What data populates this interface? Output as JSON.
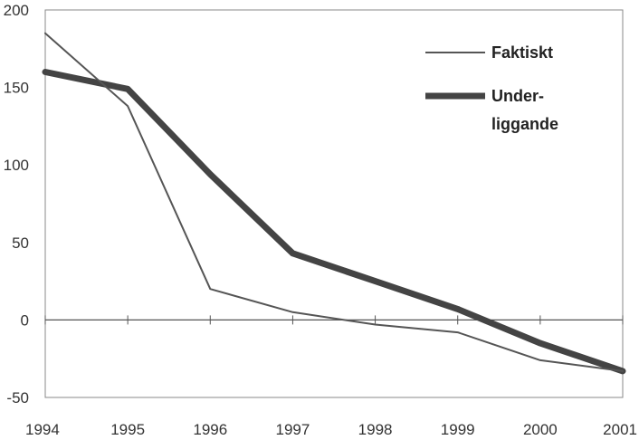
{
  "chart_data": {
    "type": "line",
    "x": [
      "1994",
      "1995",
      "1996",
      "1997",
      "1998",
      "1999",
      "2000",
      "2001"
    ],
    "ylim": [
      -50,
      200
    ],
    "yticks": [
      "200",
      "150",
      "100",
      "50",
      "0",
      "-50"
    ],
    "grid": false,
    "legend_position": "top-right",
    "series": [
      {
        "name": "Faktiskt",
        "values": [
          185,
          138,
          20,
          5,
          -3,
          -8,
          -26,
          -33
        ],
        "color": "#555555"
      },
      {
        "name": "Under- liggande",
        "name_lines": [
          "Under-",
          "liggande"
        ],
        "values": [
          160,
          149,
          94,
          43,
          25,
          7,
          -15,
          -33
        ],
        "color": "#444444"
      }
    ]
  }
}
